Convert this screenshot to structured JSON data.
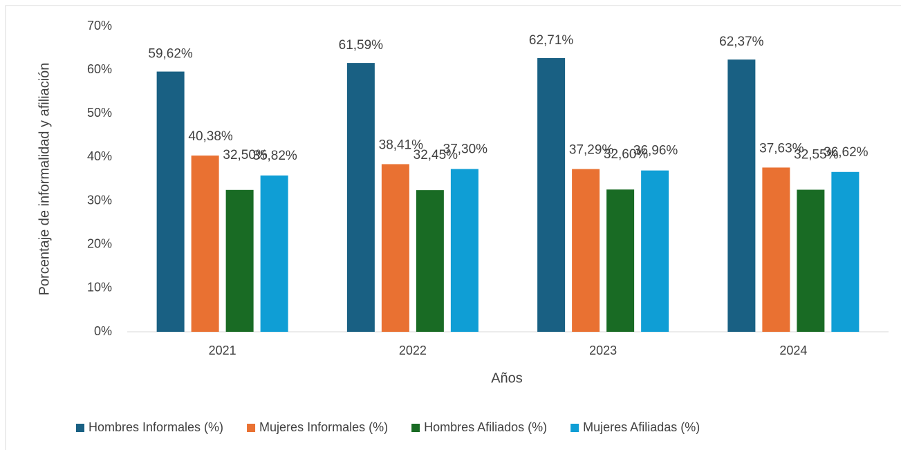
{
  "chart_data": {
    "type": "bar",
    "categories": [
      "2021",
      "2022",
      "2023",
      "2024"
    ],
    "series": [
      {
        "name": "Hombres Informales (%)",
        "color": "#196083",
        "values": [
          59.62,
          61.59,
          62.71,
          62.37
        ],
        "value_labels": [
          "59,62%",
          "61,59%",
          "62,71%",
          "62,37%"
        ]
      },
      {
        "name": "Mujeres Informales (%)",
        "color": "#e97132",
        "values": [
          40.38,
          38.41,
          37.29,
          37.63
        ],
        "value_labels": [
          "40,38%",
          "38,41%",
          "37,29%",
          "37,63%"
        ]
      },
      {
        "name": "Hombres Afiliados (%)",
        "color": "#196b24",
        "values": [
          32.5,
          32.45,
          32.6,
          32.55
        ],
        "value_labels": [
          "32,50%",
          "32,45%",
          "32,60%",
          "32,55%"
        ]
      },
      {
        "name": "Mujeres Afiliadas (%)",
        "color": "#0f9ed5",
        "values": [
          35.82,
          37.3,
          36.96,
          36.62
        ],
        "value_labels": [
          "35,82%",
          "37,30%",
          "36,96%",
          "36,62%"
        ]
      }
    ],
    "xlabel": "Años",
    "ylabel": "Porcentaje de informalidad y afiliación",
    "ylim": [
      0,
      70
    ],
    "yticks": [
      {
        "value": 0,
        "label": "0%"
      },
      {
        "value": 10,
        "label": "10%"
      },
      {
        "value": 20,
        "label": "20%"
      },
      {
        "value": 30,
        "label": "30%"
      },
      {
        "value": 40,
        "label": "40%"
      },
      {
        "value": 50,
        "label": "50%"
      },
      {
        "value": 60,
        "label": "60%"
      },
      {
        "value": 70,
        "label": "70%"
      }
    ],
    "grid": false,
    "legend": "bottom"
  }
}
